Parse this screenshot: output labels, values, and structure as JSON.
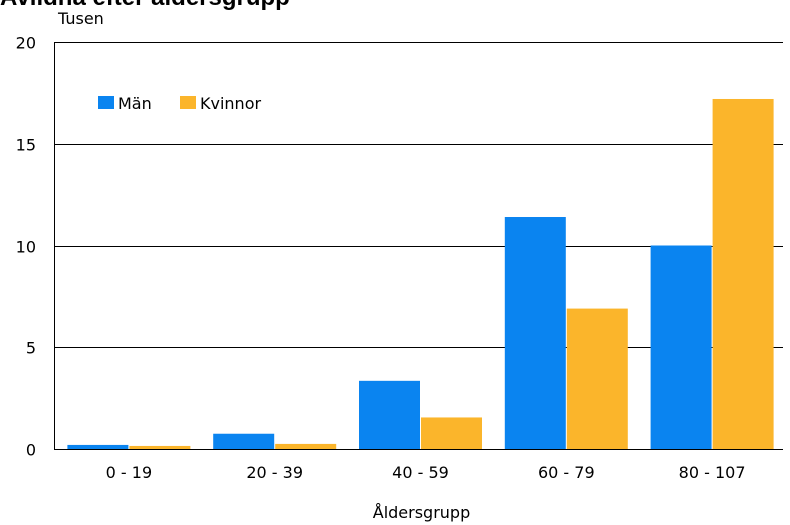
{
  "chart_data": {
    "type": "bar",
    "title": "Avlidna efter åldersgrupp",
    "unit_label": "Tusen",
    "xlabel": "Åldersgrupp",
    "ylabel": "",
    "categories": [
      "0 - 19",
      "20 - 39",
      "40 - 59",
      "60 - 79",
      "80 - 107"
    ],
    "series": [
      {
        "name": "Män",
        "color": "#0a84f0",
        "values": [
          0.2,
          0.75,
          3.35,
          11.4,
          10.0
        ]
      },
      {
        "name": "Kvinnor",
        "color": "#fbb52b",
        "values": [
          0.15,
          0.25,
          1.55,
          6.9,
          17.2
        ]
      }
    ],
    "ylim": [
      0,
      20
    ],
    "yticks": [
      0,
      5,
      10,
      15,
      20
    ],
    "grid": true,
    "legend_position": "top-left"
  }
}
